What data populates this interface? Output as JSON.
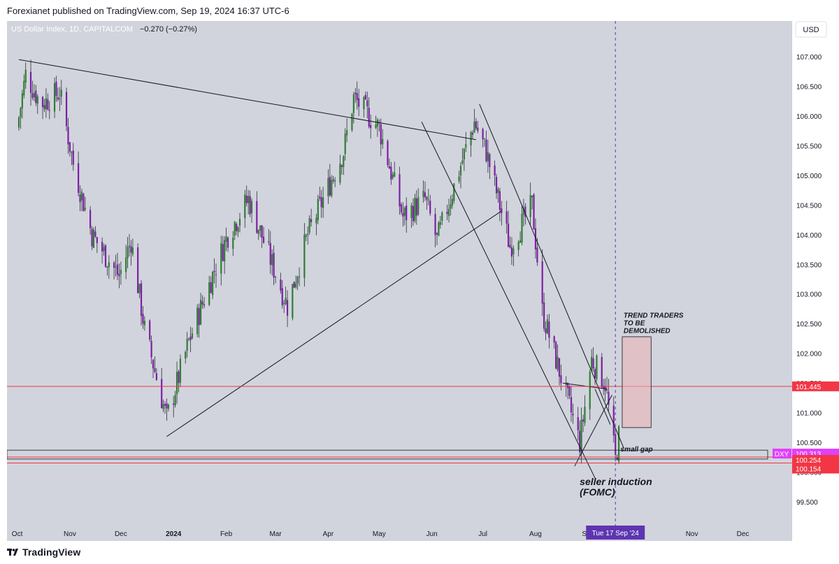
{
  "header": {
    "published": "Forexianet published on TradingView.com, Sep 19, 2024 16:37 UTC-6"
  },
  "footer": {
    "brand": "TradingView"
  },
  "symbol": {
    "name": "US Dollar Index, 1D, CAPITALCOM",
    "change": "−0.270 (−0.27%)",
    "currency": "USD",
    "ticker": "DXY"
  },
  "colors": {
    "background": "#d1d4dc",
    "candle_up": "#2e7d32",
    "candle_down": "#7b1fa2",
    "resistance_line": "#f23645",
    "price_tag": "#e040fb",
    "price_tag_red": "#f23645",
    "crosshair_label": "#5e35b1",
    "zone_fill": "#e8b4b8"
  },
  "chart_data": {
    "type": "candlestick",
    "title": "US Dollar Index, 1D, CAPITALCOM",
    "ylim": [
      99.1,
      107.6
    ],
    "y_ticks": [
      "107.000",
      "106.500",
      "106.000",
      "105.500",
      "105.000",
      "104.500",
      "104.000",
      "103.500",
      "103.000",
      "102.500",
      "102.000",
      "101.500",
      "101.000",
      "100.500",
      "100.000",
      "99.500"
    ],
    "x_ticks": [
      "Oct",
      "Nov",
      "Dec",
      "2024",
      "Feb",
      "Mar",
      "Apr",
      "May",
      "Jun",
      "Jul",
      "Aug",
      "Sep",
      "Nov",
      "Dec"
    ],
    "price_path": [
      {
        "date": "2023-10-01",
        "value": 105.8
      },
      {
        "date": "2023-10-06",
        "value": 106.7
      },
      {
        "date": "2023-10-15",
        "value": 106.2
      },
      {
        "date": "2023-10-26",
        "value": 106.4
      },
      {
        "date": "2023-11-03",
        "value": 105.2
      },
      {
        "date": "2023-11-14",
        "value": 104.0
      },
      {
        "date": "2023-11-30",
        "value": 103.3
      },
      {
        "date": "2023-12-07",
        "value": 103.9
      },
      {
        "date": "2023-12-15",
        "value": 102.4
      },
      {
        "date": "2023-12-28",
        "value": 100.9
      },
      {
        "date": "2024-01-10",
        "value": 102.2
      },
      {
        "date": "2024-01-25",
        "value": 103.4
      },
      {
        "date": "2024-02-02",
        "value": 104.0
      },
      {
        "date": "2024-02-14",
        "value": 104.6
      },
      {
        "date": "2024-03-08",
        "value": 102.8
      },
      {
        "date": "2024-03-20",
        "value": 104.0
      },
      {
        "date": "2024-04-10",
        "value": 105.4
      },
      {
        "date": "2024-04-16",
        "value": 106.3
      },
      {
        "date": "2024-05-01",
        "value": 105.8
      },
      {
        "date": "2024-05-15",
        "value": 104.3
      },
      {
        "date": "2024-05-28",
        "value": 104.6
      },
      {
        "date": "2024-06-04",
        "value": 103.9
      },
      {
        "date": "2024-06-26",
        "value": 105.9
      },
      {
        "date": "2024-07-03",
        "value": 105.4
      },
      {
        "date": "2024-07-17",
        "value": 103.8
      },
      {
        "date": "2024-07-30",
        "value": 104.5
      },
      {
        "date": "2024-08-05",
        "value": 102.7
      },
      {
        "date": "2024-08-27",
        "value": 100.5
      },
      {
        "date": "2024-09-03",
        "value": 101.9
      },
      {
        "date": "2024-09-11",
        "value": 101.5
      },
      {
        "date": "2024-09-17",
        "value": 100.2
      },
      {
        "date": "2024-09-19",
        "value": 100.6
      }
    ],
    "horizontal_levels": [
      {
        "label": "101.445",
        "value": 101.445,
        "color": "#f23645"
      },
      {
        "label": "100.313",
        "value": 100.313,
        "color": "#e040fb"
      },
      {
        "label": "100.254",
        "value": 100.254,
        "color": "#f23645"
      },
      {
        "label": "100.154",
        "value": 100.154,
        "color": "#f23645"
      }
    ],
    "crosshair_label": "Tue 17 Sep '24",
    "annotations": {
      "zone_text": "TREND TRADERS TO BE DEMOLISHED",
      "gap_text": "small gap",
      "induction_text_1": "seller induction",
      "induction_text_2": "(FOMC)"
    },
    "grid": false,
    "legend": "none"
  }
}
